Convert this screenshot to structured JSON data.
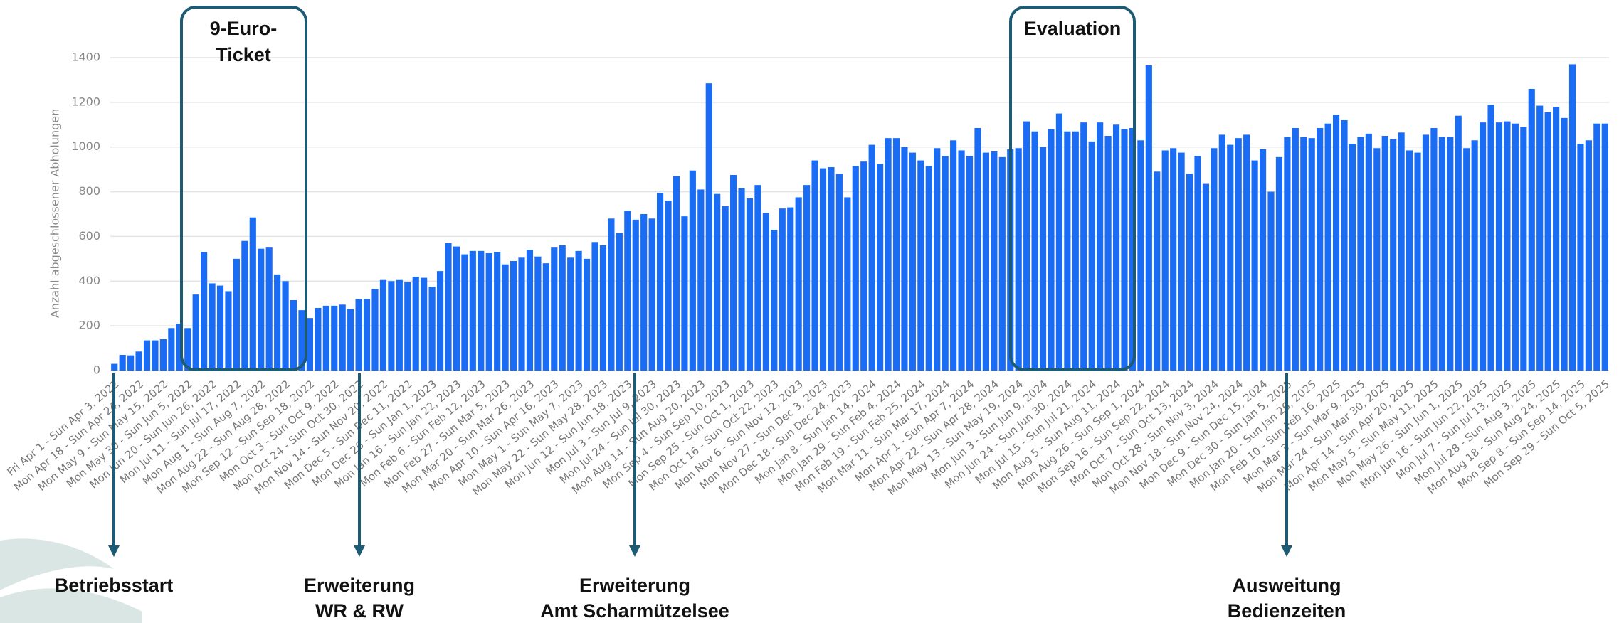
{
  "chart_data": {
    "type": "bar",
    "y_label": "Anzahl abgeschlossener Abholungen",
    "color": "#1a6cf4",
    "grid": true,
    "ylim": [
      0,
      1400
    ],
    "yticks": [
      0,
      200,
      400,
      600,
      800,
      1000,
      1200,
      1400
    ],
    "categories": [
      "Fri Apr 1 - Sun Apr 3, 2022",
      null,
      null,
      "Mon Apr 18 - Sun Apr 24, 2022",
      null,
      null,
      "Mon May 9 - Sun May 15, 2022",
      null,
      null,
      "Mon May 30 - Sun Jun 5, 2022",
      null,
      null,
      "Mon Jun 20 - Sun Jun 26, 2022",
      null,
      null,
      "Mon Jul 11 - Sun Jul 17, 2022",
      null,
      null,
      "Mon Aug 1 - Sun Aug 7, 2022",
      null,
      null,
      "Mon Aug 22 - Sun Aug 28, 2022",
      null,
      null,
      "Mon Sep 12 - Sun Sep 18, 2022",
      null,
      null,
      "Mon Oct 3 - Sun Oct 9, 2022",
      null,
      null,
      "Mon Oct 24 - Sun Oct 30, 2022",
      null,
      null,
      "Mon Nov 14 - Sun Nov 20, 2022",
      null,
      null,
      "Mon Dec 5 - Sun Dec 11, 2022",
      null,
      null,
      "Mon Dec 26 - Sun Jan 1, 2023",
      null,
      null,
      "Mon Jan 16 - Sun Jan 22, 2023",
      null,
      null,
      "Mon Feb 6 - Sun Feb 12, 2023",
      null,
      null,
      "Mon Feb 27 - Sun Mar 5, 2023",
      null,
      null,
      "Mon Mar 20 - Sun Mar 26, 2023",
      null,
      null,
      "Mon Apr 10 - Sun Apr 16, 2023",
      null,
      null,
      "Mon May 1 - Sun May 7, 2023",
      null,
      null,
      "Mon May 22 - Sun May 28, 2023",
      null,
      null,
      "Mon Jun 12 - Sun Jun 18, 2023",
      null,
      null,
      "Mon Jul 3 - Sun Jul 9, 2023",
      null,
      null,
      "Mon Jul 24 - Sun Jul 30, 2023",
      null,
      null,
      "Mon Aug 14 - Sun Aug 20, 2023",
      null,
      null,
      "Mon Sep 4 - Sun Sep 10, 2023",
      null,
      null,
      "Mon Sep 25 - Sun Oct 1, 2023",
      null,
      null,
      "Mon Oct 16 - Sun Oct 22, 2023",
      null,
      null,
      "Mon Nov 6 - Sun Nov 12, 2023",
      null,
      null,
      "Mon Nov 27 - Sun Dec 3, 2023",
      null,
      null,
      "Mon Dec 18 - Sun Dec 24, 2023",
      null,
      null,
      "Mon Jan 8 - Sun Jan 14, 2024",
      null,
      null,
      "Mon Jan 29 - Sun Feb 4, 2024",
      null,
      null,
      "Mon Feb 19 - Sun Feb 25, 2024",
      null,
      null,
      "Mon Mar 11 - Sun Mar 17, 2024",
      null,
      null,
      "Mon Apr 1 - Sun Apr 7, 2024",
      null,
      null,
      "Mon Apr 22 - Sun Apr 28, 2024",
      null,
      null,
      "Mon May 13 - Sun May 19, 2024",
      null,
      null,
      "Mon Jun 3 - Sun Jun 9, 2024",
      null,
      null,
      "Mon Jun 24 - Sun Jun 30, 2024",
      null,
      null,
      "Mon Jul 15 - Sun Jul 21, 2024",
      null,
      null,
      "Mon Aug 5 - Sun Aug 11, 2024",
      null,
      null,
      "Mon Aug 26 - Sun Sep 1, 2024",
      null,
      null,
      "Mon Sep 16 - Sun Sep 22, 2024",
      null,
      null,
      "Mon Oct 7 - Sun Oct 13, 2024",
      null,
      null,
      "Mon Oct 28 - Sun Nov 3, 2024",
      null,
      null,
      "Mon Nov 18 - Sun Nov 24, 2024",
      null,
      null,
      "Mon Dec 9 - Sun Dec 15, 2024",
      null,
      null,
      "Mon Dec 30 - Sun Jan 5, 2025",
      null,
      null,
      "Mon Jan 20 - Sun Jan 26, 2025",
      null,
      null,
      "Mon Feb 10 - Sun Feb 16, 2025",
      null,
      null,
      "Mon Mar 3 - Sun Mar 9, 2025",
      null,
      null,
      "Mon Mar 24 - Sun Mar 30, 2025",
      null,
      null,
      "Mon Apr 14 - Sun Apr 20, 2025",
      null,
      null,
      "Mon May 5 - Sun May 11, 2025",
      null,
      null,
      "Mon May 26 - Sun Jun 1, 2025",
      null,
      null,
      "Mon Jun 16 - Sun Jun 22, 2025",
      null,
      null,
      "Mon Jul 7 - Sun Jul 13, 2025",
      null,
      null,
      "Mon Jul 28 - Sun Aug 3, 2025",
      null,
      null,
      "Mon Aug 18 - Sun Aug 24, 2025",
      null,
      null,
      "Mon Sep 8 - Sun Sep 14, 2025",
      null,
      null,
      "Mon Sep 29 - Sun Oct 5, 2025"
    ],
    "values": [
      30,
      70,
      68,
      85,
      135,
      135,
      140,
      190,
      210,
      190,
      340,
      530,
      390,
      380,
      355,
      500,
      580,
      685,
      545,
      550,
      430,
      400,
      315,
      270,
      235,
      280,
      290,
      290,
      295,
      275,
      320,
      320,
      365,
      405,
      400,
      405,
      395,
      420,
      415,
      375,
      445,
      570,
      555,
      520,
      535,
      535,
      525,
      530,
      475,
      490,
      505,
      540,
      510,
      480,
      550,
      560,
      505,
      535,
      500,
      575,
      560,
      680,
      615,
      715,
      675,
      700,
      680,
      795,
      760,
      870,
      690,
      895,
      810,
      1285,
      790,
      735,
      875,
      815,
      770,
      830,
      705,
      630,
      725,
      730,
      775,
      830,
      940,
      905,
      910,
      880,
      775,
      915,
      935,
      1010,
      925,
      1040,
      1040,
      1000,
      975,
      940,
      915,
      995,
      960,
      1030,
      985,
      960,
      1085,
      975,
      980,
      955,
      990,
      995,
      1115,
      1070,
      1000,
      1080,
      1150,
      1070,
      1070,
      1110,
      1025,
      1110,
      1050,
      1100,
      1080,
      1085,
      1030,
      1365,
      890,
      985,
      995,
      975,
      880,
      960,
      835,
      995,
      1055,
      1010,
      1040,
      1055,
      940,
      990,
      800,
      955,
      1045,
      1085,
      1045,
      1040,
      1085,
      1105,
      1145,
      1120,
      1015,
      1045,
      1060,
      995,
      1050,
      1035,
      1065,
      985,
      975,
      1055,
      1085,
      1045,
      1045,
      1140,
      995,
      1030,
      1110,
      1190,
      1110,
      1115,
      1105,
      1090,
      1260,
      1185,
      1155,
      1180,
      1130,
      1370,
      1015,
      1030,
      1105,
      1105
    ]
  },
  "annotations": {
    "box_ticket": [
      "9-Euro-",
      "Ticket"
    ],
    "box_evaluation": "Evaluation",
    "start": "Betriebsstart",
    "extension_1": [
      "Erweiterung",
      "WR & RW"
    ],
    "extension_2": [
      "Erweiterung",
      "Amt Scharmützelsee"
    ],
    "hours": [
      "Ausweitung",
      "Bedienzeiten"
    ]
  }
}
